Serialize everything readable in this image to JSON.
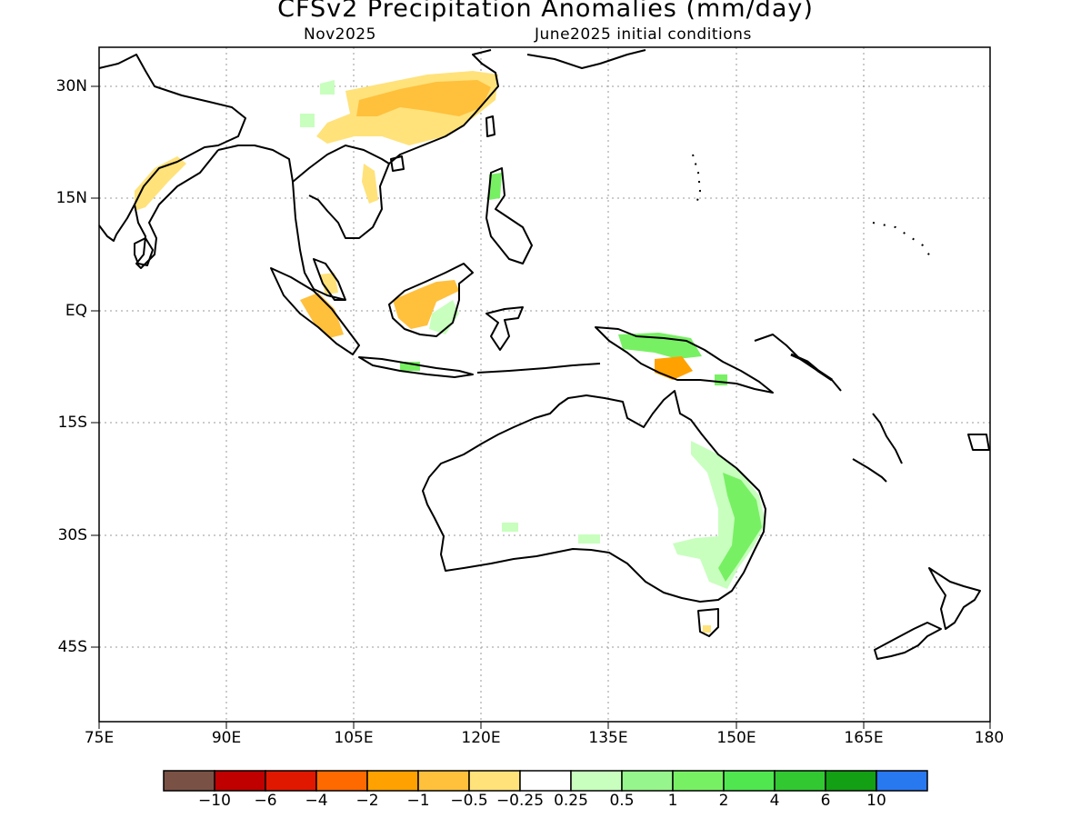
{
  "header": {
    "title": "CFSv2 Precipitation Anomalies (mm/day)",
    "forecast_month": "Nov2025",
    "initial_conditions": "June2025 initial conditions"
  },
  "map": {
    "lat_labels": [
      "30N",
      "15N",
      "EQ",
      "15S",
      "30S",
      "45S"
    ],
    "lon_labels": [
      "75E",
      "90E",
      "105E",
      "120E",
      "135E",
      "150E",
      "165E",
      "180"
    ],
    "grid": "dotted"
  },
  "legend": {
    "labels": [
      "−10",
      "−6",
      "−4",
      "−2",
      "−1",
      "−0.5",
      "−0.25",
      "0.25",
      "0.5",
      "1",
      "2",
      "4",
      "6",
      "10"
    ],
    "colors": [
      "#7a5245",
      "#c00000",
      "#e01800",
      "#ff6a00",
      "#ffa100",
      "#ffc03c",
      "#ffe27a",
      "#ffffff",
      "#c8ffbe",
      "#96f58c",
      "#78f064",
      "#50e650",
      "#32c832",
      "#14a014",
      "#2878f0"
    ]
  }
}
